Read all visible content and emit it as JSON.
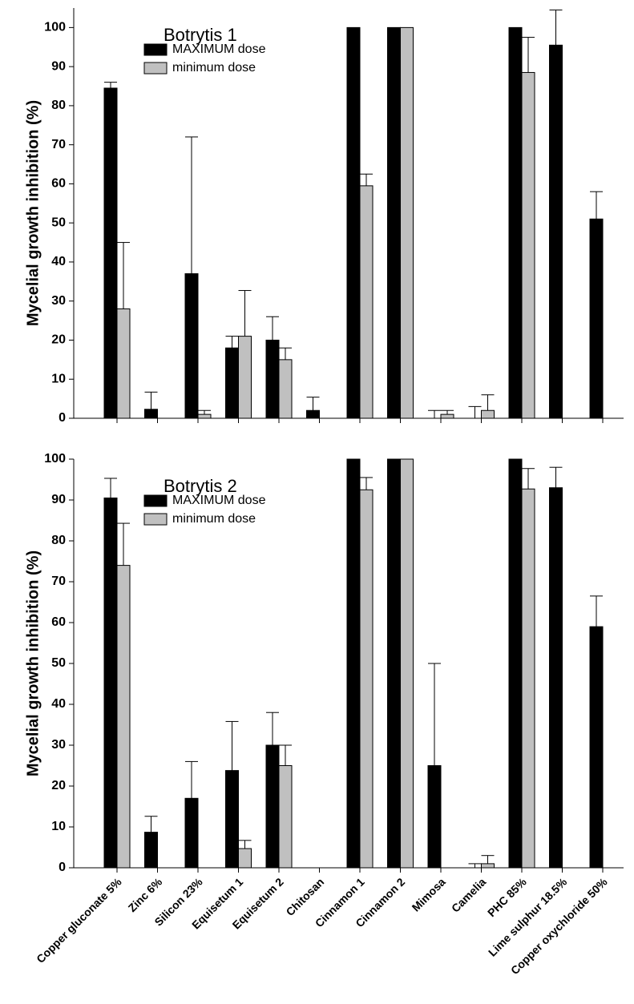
{
  "chart_data": [
    {
      "type": "bar",
      "title": "Botrytis 1",
      "ylabel": "Mycelial growth inhibition (%)",
      "ylim": [
        0,
        105
      ],
      "yticks": [
        0,
        10,
        20,
        30,
        40,
        50,
        60,
        70,
        80,
        90,
        100
      ],
      "series": [
        {
          "name": "MAXIMUM dose",
          "color": "#000000",
          "values": [
            84.5,
            2.3,
            37,
            18,
            20,
            2,
            100,
            100,
            0,
            0,
            100,
            95.5,
            51
          ],
          "errors": [
            1.5,
            4.4,
            35,
            3,
            6,
            3.4,
            0,
            0,
            2,
            3,
            0,
            9,
            7
          ]
        },
        {
          "name": "minimum dose",
          "color": "#c0c0c0",
          "values": [
            28,
            0,
            1,
            21,
            15,
            0,
            59.5,
            100,
            1,
            2,
            88.5,
            null,
            null
          ],
          "errors": [
            17,
            null,
            1,
            11.7,
            3,
            null,
            3,
            0,
            1,
            4,
            9,
            null,
            null
          ]
        }
      ]
    },
    {
      "type": "bar",
      "title": "Botrytis 2",
      "ylabel": "Mycelial growth inhibition (%)",
      "categories": [
        "Copper gluconate 5%",
        "Zinc 6%",
        "Silicon 23%",
        "Equisetum 1",
        "Equisetum 2",
        "Chitosan",
        "Cinnamon 1",
        "Cinnamon 2",
        "Mimosa",
        "Camelia",
        "PHC 85%",
        "Lime sulphur 18.5%",
        "Copper oxychloride 50%"
      ],
      "ylim": [
        0,
        100
      ],
      "yticks": [
        0,
        10,
        20,
        30,
        40,
        50,
        60,
        70,
        80,
        90,
        100
      ],
      "series": [
        {
          "name": "MAXIMUM dose",
          "color": "#000000",
          "values": [
            90.5,
            8.7,
            17,
            23.8,
            30,
            0,
            100,
            100,
            25,
            0,
            100,
            93,
            59
          ],
          "errors": [
            4.8,
            3.9,
            9,
            12,
            8,
            null,
            0,
            0,
            25,
            1,
            0,
            5,
            7.5
          ]
        },
        {
          "name": "minimum dose",
          "color": "#c0c0c0",
          "values": [
            74,
            0,
            0,
            4.7,
            25,
            0,
            92.5,
            100,
            0,
            1,
            92.7,
            null,
            null
          ],
          "errors": [
            10.3,
            null,
            null,
            2,
            5,
            null,
            3,
            0,
            null,
            2,
            5,
            null,
            null
          ]
        }
      ]
    }
  ]
}
